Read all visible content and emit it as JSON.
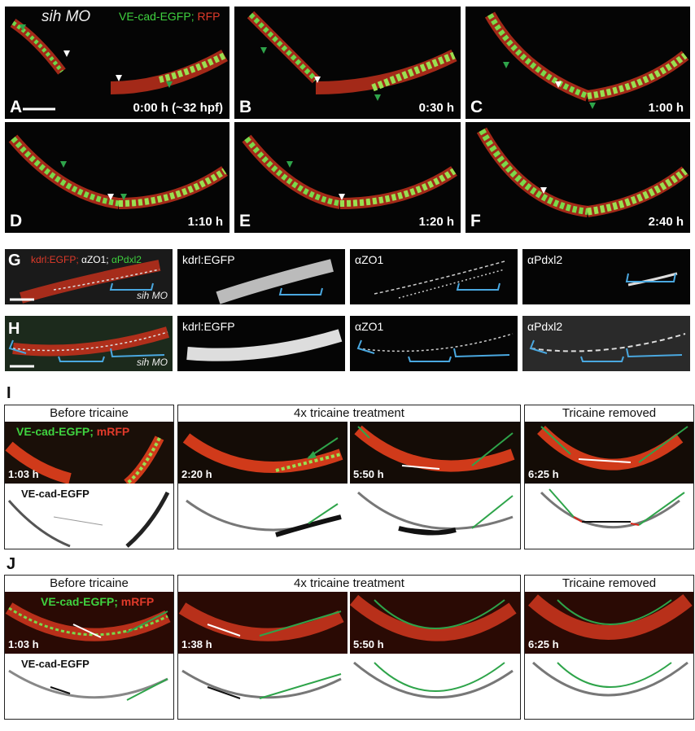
{
  "top": {
    "title_italic": "sih MO",
    "legend_green": "VE-cad-EGFP;",
    "legend_red": "RFP",
    "panels": [
      {
        "letter": "A",
        "time": "0:00 h (~32 hpf)"
      },
      {
        "letter": "B",
        "time": "0:30 h"
      },
      {
        "letter": "C",
        "time": "1:00 h"
      },
      {
        "letter": "D",
        "time": "1:10 h"
      },
      {
        "letter": "E",
        "time": "1:20 h"
      },
      {
        "letter": "F",
        "time": "2:40 h"
      }
    ]
  },
  "middle": {
    "rowG": {
      "letter": "G",
      "merge_label_red": "kdrl:EGFP;",
      "merge_label_white": "αZO1;",
      "merge_label_green": "αPdxl2",
      "mo": "sih MO",
      "channels": [
        "kdrl:EGFP",
        "αZO1",
        "αPdxl2"
      ]
    },
    "rowH": {
      "letter": "H",
      "mo": "sih MO",
      "channels": [
        "kdrl:EGFP",
        "αZO1",
        "αPdxl2"
      ]
    }
  },
  "rowI": {
    "letter": "I",
    "groups": [
      "Before tricaine",
      "4x tricaine treatment",
      "Tricaine removed"
    ],
    "label_green": "VE-cad-EGFP;",
    "label_red": "mRFP",
    "inverted_label": "VE-cad-EGFP",
    "times": [
      "1:03 h",
      "2:20 h",
      "5:50 h",
      "6:25 h"
    ]
  },
  "rowJ": {
    "letter": "J",
    "groups": [
      "Before tricaine",
      "4x tricaine treatment",
      "Tricaine removed"
    ],
    "label_green": "VE-cad-EGFP;",
    "label_red": "mRFP",
    "inverted_label": "VE-cad-EGFP",
    "times": [
      "1:03 h",
      "1:38 h",
      "5:50 h",
      "6:25 h"
    ]
  },
  "colors": {
    "green": "#3fd23f",
    "red": "#d8281c",
    "cyan": "#4aa8e0",
    "arrow_green": "#1f9a40"
  }
}
